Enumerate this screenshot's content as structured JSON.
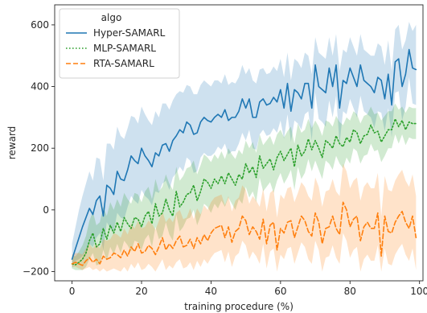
{
  "chart_data": {
    "type": "line",
    "xlabel": "training procedure (%)",
    "ylabel": "reward",
    "xlim": [
      -5,
      101
    ],
    "ylim": [
      -230,
      665
    ],
    "xticks": [
      0,
      20,
      40,
      60,
      80,
      100
    ],
    "yticks": [
      -200,
      0,
      200,
      400,
      600
    ],
    "grid": false,
    "legend": {
      "title": "algo",
      "placement": "top-left"
    },
    "x": [
      0,
      1,
      2,
      3,
      4,
      5,
      6,
      7,
      8,
      9,
      10,
      11,
      12,
      13,
      14,
      15,
      16,
      17,
      18,
      19,
      20,
      21,
      22,
      23,
      24,
      25,
      26,
      27,
      28,
      29,
      30,
      31,
      32,
      33,
      34,
      35,
      36,
      37,
      38,
      39,
      40,
      41,
      42,
      43,
      44,
      45,
      46,
      47,
      48,
      49,
      50,
      51,
      52,
      53,
      54,
      55,
      56,
      57,
      58,
      59,
      60,
      61,
      62,
      63,
      64,
      65,
      66,
      67,
      68,
      69,
      70,
      71,
      72,
      73,
      74,
      75,
      76,
      77,
      78,
      79,
      80,
      81,
      82,
      83,
      84,
      85,
      86,
      87,
      88,
      89,
      90,
      91,
      92,
      93,
      94,
      95,
      96,
      97,
      98,
      99
    ],
    "series": [
      {
        "name": "Hyper-SAMARL",
        "color": "#1f77b4",
        "dash": "solid",
        "band": 70,
        "values": [
          -160,
          -125,
          -90,
          -55,
          -25,
          5,
          -15,
          30,
          45,
          -20,
          80,
          70,
          50,
          125,
          100,
          95,
          130,
          175,
          160,
          150,
          200,
          175,
          160,
          140,
          185,
          175,
          210,
          215,
          190,
          225,
          240,
          260,
          250,
          285,
          275,
          245,
          250,
          285,
          300,
          290,
          285,
          300,
          310,
          300,
          325,
          290,
          300,
          300,
          320,
          360,
          330,
          360,
          300,
          300,
          350,
          360,
          340,
          345,
          365,
          350,
          390,
          330,
          410,
          320,
          390,
          380,
          360,
          410,
          410,
          330,
          470,
          400,
          390,
          380,
          460,
          400,
          470,
          330,
          420,
          410,
          460,
          430,
          400,
          470,
          420,
          410,
          400,
          380,
          430,
          420,
          360,
          440,
          340,
          480,
          490,
          400,
          440,
          520,
          460,
          455
        ],
        "upper": [
          -110,
          -55,
          0,
          45,
          85,
          125,
          95,
          170,
          165,
          95,
          215,
          215,
          195,
          270,
          240,
          230,
          265,
          305,
          300,
          280,
          335,
          310,
          290,
          275,
          320,
          300,
          345,
          345,
          325,
          355,
          375,
          385,
          380,
          405,
          400,
          375,
          375,
          405,
          420,
          410,
          400,
          420,
          420,
          410,
          440,
          405,
          415,
          410,
          430,
          470,
          440,
          460,
          420,
          410,
          455,
          460,
          440,
          445,
          465,
          450,
          490,
          430,
          510,
          420,
          490,
          480,
          460,
          510,
          500,
          440,
          560,
          510,
          500,
          490,
          560,
          500,
          570,
          450,
          520,
          510,
          560,
          530,
          500,
          570,
          520,
          510,
          500,
          500,
          540,
          530,
          470,
          550,
          450,
          585,
          600,
          520,
          550,
          610,
          580,
          600
        ],
        "lower": [
          -190,
          -165,
          -160,
          -150,
          -135,
          -110,
          -120,
          -90,
          -75,
          -130,
          -40,
          -60,
          -70,
          -10,
          -25,
          -30,
          10,
          45,
          30,
          20,
          65,
          45,
          35,
          15,
          60,
          55,
          85,
          95,
          65,
          105,
          120,
          140,
          125,
          170,
          160,
          120,
          125,
          170,
          185,
          175,
          175,
          185,
          205,
          195,
          215,
          180,
          190,
          190,
          215,
          250,
          225,
          260,
          200,
          195,
          245,
          260,
          240,
          245,
          265,
          250,
          290,
          230,
          310,
          220,
          290,
          280,
          260,
          310,
          320,
          225,
          380,
          295,
          285,
          270,
          355,
          300,
          370,
          215,
          320,
          310,
          360,
          330,
          300,
          370,
          320,
          310,
          300,
          265,
          320,
          315,
          255,
          330,
          235,
          380,
          385,
          290,
          335,
          430,
          345,
          340
        ]
      },
      {
        "name": "MLP-SAMARL",
        "color": "#2ca02c",
        "dash": "dotted",
        "band": 50,
        "values": [
          -175,
          -178,
          -170,
          -160,
          -140,
          -100,
          -75,
          -120,
          -110,
          -60,
          -95,
          -50,
          -75,
          -40,
          -70,
          -25,
          -45,
          -60,
          -25,
          -30,
          -55,
          -20,
          -5,
          -45,
          20,
          -20,
          -10,
          35,
          0,
          -20,
          60,
          10,
          25,
          50,
          55,
          80,
          30,
          60,
          100,
          90,
          70,
          100,
          85,
          110,
          85,
          120,
          100,
          80,
          115,
          100,
          150,
          120,
          140,
          105,
          175,
          135,
          150,
          165,
          130,
          170,
          190,
          160,
          180,
          200,
          140,
          210,
          175,
          190,
          230,
          195,
          225,
          200,
          170,
          225,
          215,
          200,
          240,
          215,
          205,
          235,
          220,
          260,
          250,
          215,
          240,
          245,
          275,
          250,
          255,
          220,
          240,
          260,
          260,
          295,
          270,
          290,
          260,
          285,
          280,
          280
        ],
        "upper": [
          -150,
          -150,
          -135,
          -115,
          -85,
          -35,
          -5,
          -50,
          -40,
          10,
          -20,
          25,
          0,
          35,
          10,
          55,
          35,
          20,
          55,
          50,
          25,
          60,
          75,
          35,
          100,
          60,
          75,
          115,
          85,
          65,
          140,
          95,
          110,
          135,
          140,
          160,
          115,
          145,
          180,
          170,
          155,
          180,
          165,
          190,
          165,
          200,
          180,
          165,
          195,
          180,
          225,
          200,
          220,
          185,
          245,
          210,
          225,
          240,
          210,
          245,
          260,
          235,
          255,
          270,
          215,
          280,
          250,
          260,
          295,
          265,
          290,
          270,
          240,
          290,
          285,
          270,
          305,
          285,
          275,
          300,
          290,
          320,
          310,
          280,
          305,
          310,
          335,
          310,
          315,
          290,
          305,
          320,
          320,
          345,
          325,
          335,
          315,
          335,
          330,
          330
        ],
        "lower": [
          -190,
          -195,
          -195,
          -195,
          -185,
          -160,
          -140,
          -180,
          -175,
          -130,
          -165,
          -120,
          -145,
          -110,
          -140,
          -100,
          -115,
          -135,
          -100,
          -105,
          -130,
          -95,
          -80,
          -120,
          -55,
          -95,
          -85,
          -40,
          -80,
          -100,
          -15,
          -70,
          -55,
          -30,
          -25,
          0,
          -50,
          -20,
          20,
          10,
          -10,
          20,
          5,
          30,
          10,
          40,
          20,
          0,
          35,
          20,
          75,
          40,
          60,
          25,
          105,
          60,
          75,
          90,
          55,
          95,
          120,
          85,
          105,
          130,
          65,
          140,
          100,
          120,
          165,
          125,
          160,
          130,
          100,
          160,
          150,
          130,
          175,
          150,
          135,
          170,
          150,
          200,
          190,
          150,
          175,
          180,
          215,
          190,
          195,
          155,
          175,
          200,
          200,
          245,
          215,
          245,
          210,
          235,
          230,
          230
        ]
      },
      {
        "name": "RTA-SAMARL",
        "color": "#ff7f0e",
        "dash": "dashed",
        "band": 75,
        "values": [
          -175,
          -170,
          -175,
          -180,
          -165,
          -155,
          -170,
          -160,
          -175,
          -150,
          -160,
          -155,
          -140,
          -145,
          -155,
          -130,
          -150,
          -120,
          -135,
          -110,
          -140,
          -135,
          -115,
          -125,
          -145,
          -120,
          -90,
          -130,
          -110,
          -125,
          -100,
          -85,
          -120,
          -115,
          -95,
          -125,
          -90,
          -110,
          -80,
          -100,
          -75,
          -60,
          -55,
          -50,
          -90,
          -55,
          -105,
          -70,
          -60,
          -20,
          -35,
          -80,
          -55,
          -70,
          -95,
          -30,
          -110,
          -50,
          -40,
          -130,
          -60,
          -75,
          -40,
          -35,
          -90,
          -55,
          -20,
          -35,
          -70,
          -85,
          -10,
          -40,
          -110,
          -60,
          -55,
          -20,
          -60,
          -80,
          25,
          0,
          -55,
          -30,
          -20,
          -100,
          -55,
          -40,
          -60,
          -60,
          -10,
          -150,
          -20,
          -70,
          -75,
          -40,
          -20,
          -5,
          -40,
          -60,
          -20,
          -90
        ],
        "upper": [
          -145,
          -140,
          -140,
          -145,
          -125,
          -110,
          -125,
          -110,
          -125,
          -95,
          -100,
          -95,
          -75,
          -80,
          -90,
          -60,
          -80,
          -45,
          -60,
          -35,
          -60,
          -55,
          -35,
          -45,
          -65,
          -35,
          -5,
          -40,
          -25,
          -40,
          -10,
          0,
          -30,
          -25,
          5,
          -30,
          5,
          -15,
          15,
          0,
          25,
          40,
          45,
          50,
          15,
          45,
          -5,
          30,
          40,
          80,
          65,
          20,
          45,
          30,
          10,
          70,
          -5,
          55,
          65,
          -25,
          50,
          35,
          70,
          75,
          25,
          55,
          90,
          75,
          45,
          30,
          105,
          75,
          10,
          60,
          65,
          100,
          60,
          45,
          150,
          125,
          70,
          95,
          105,
          30,
          75,
          90,
          70,
          70,
          120,
          -20,
          110,
          65,
          60,
          95,
          115,
          130,
          95,
          75,
          115,
          45
        ],
        "lower": [
          -185,
          -185,
          -190,
          -195,
          -190,
          -185,
          -195,
          -190,
          -200,
          -190,
          -200,
          -195,
          -190,
          -195,
          -200,
          -185,
          -200,
          -175,
          -190,
          -170,
          -195,
          -190,
          -175,
          -185,
          -200,
          -180,
          -160,
          -195,
          -180,
          -190,
          -170,
          -160,
          -190,
          -185,
          -170,
          -195,
          -165,
          -185,
          -160,
          -175,
          -155,
          -140,
          -135,
          -130,
          -170,
          -135,
          -185,
          -150,
          -140,
          -100,
          -115,
          -160,
          -135,
          -150,
          -175,
          -110,
          -190,
          -135,
          -125,
          -200,
          -145,
          -160,
          -125,
          -120,
          -175,
          -140,
          -105,
          -120,
          -160,
          -175,
          -100,
          -130,
          -200,
          -155,
          -150,
          -115,
          -155,
          -175,
          -75,
          -100,
          -155,
          -130,
          -120,
          -200,
          -160,
          -145,
          -165,
          -165,
          -115,
          -200,
          -125,
          -175,
          -180,
          -145,
          -125,
          -110,
          -145,
          -165,
          -125,
          -195
        ]
      }
    ]
  }
}
